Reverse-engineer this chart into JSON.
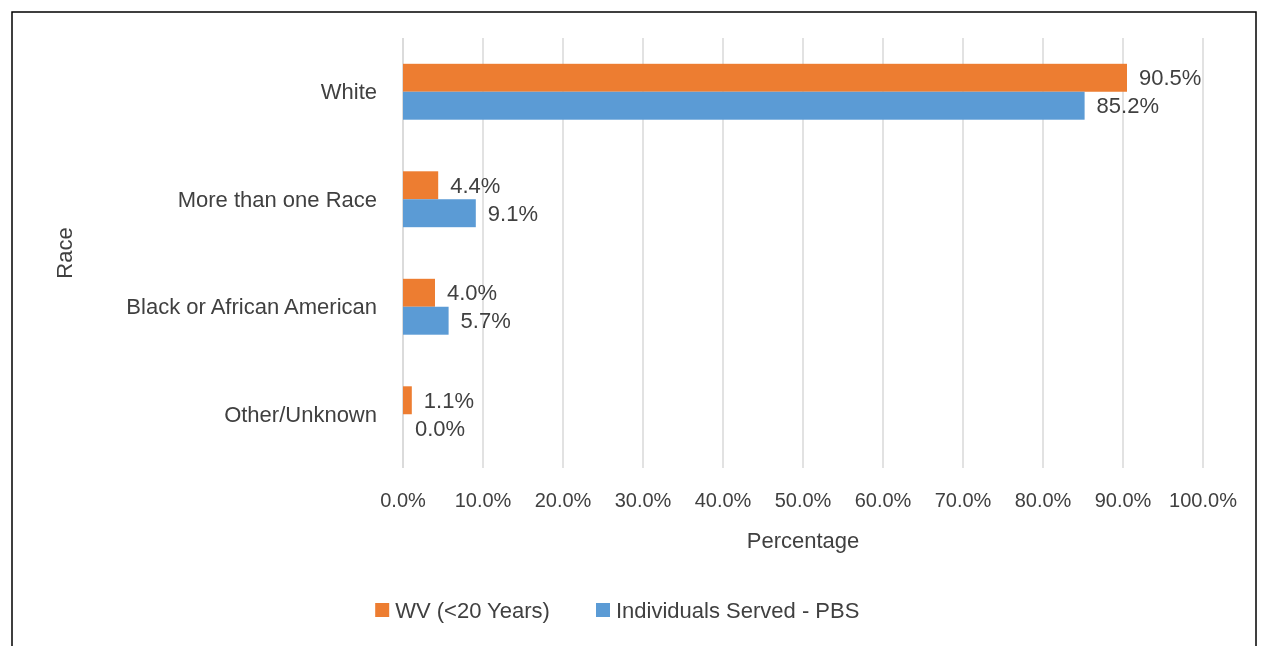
{
  "chart_data": {
    "type": "bar",
    "orientation": "horizontal",
    "xlabel": "Percentage",
    "ylabel": "Race",
    "categories": [
      "White",
      "More than one Race",
      "Black or African American",
      "Other/Unknown"
    ],
    "series": [
      {
        "name": "WV (<20 Years)",
        "color": "#ed7d31",
        "values": [
          90.5,
          4.4,
          4.0,
          1.1
        ],
        "value_labels": [
          "90.5%",
          "4.4%",
          "4.0%",
          "1.1%"
        ]
      },
      {
        "name": "Individuals Served - PBS",
        "color": "#5b9bd5",
        "values": [
          85.2,
          9.1,
          5.7,
          0.0
        ],
        "value_labels": [
          "85.2%",
          "9.1%",
          "5.7%",
          "0.0%"
        ]
      }
    ],
    "xlim": [
      0,
      100
    ],
    "xticks": [
      {
        "value": 0,
        "label": "0.0%"
      },
      {
        "value": 10,
        "label": "10.0%"
      },
      {
        "value": 20,
        "label": "20.0%"
      },
      {
        "value": 30,
        "label": "30.0%"
      },
      {
        "value": 40,
        "label": "40.0%"
      },
      {
        "value": 50,
        "label": "50.0%"
      },
      {
        "value": 60,
        "label": "60.0%"
      },
      {
        "value": 70,
        "label": "70.0%"
      },
      {
        "value": 80,
        "label": "80.0%"
      },
      {
        "value": 90,
        "label": "90.0%"
      },
      {
        "value": 100,
        "label": "100.0%"
      }
    ],
    "grid": "x",
    "legend": "bottom"
  }
}
